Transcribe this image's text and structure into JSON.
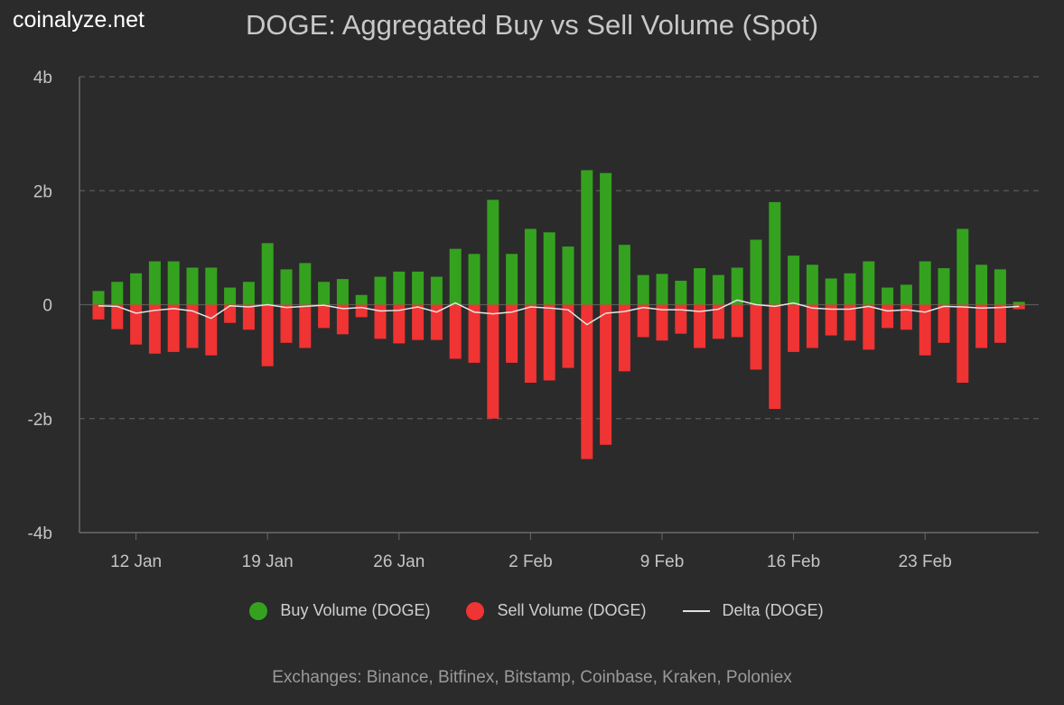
{
  "logo": "coinalyze.net",
  "footer": "Exchanges: Binance, Bitfinex, Bitstamp, Coinbase, Kraken, Poloniex",
  "colors": {
    "buy": "#34a21f",
    "sell": "#f03333",
    "delta": "#e6e6e6"
  },
  "chart_data": {
    "type": "bar",
    "title": "DOGE: Aggregated Buy vs Sell Volume (Spot)",
    "xlabel": "",
    "ylabel": "",
    "ylim": [
      -4,
      4
    ],
    "yunit": "b",
    "yticks": [
      {
        "v": 4,
        "label": "4b"
      },
      {
        "v": 2,
        "label": "2b"
      },
      {
        "v": 0,
        "label": "0"
      },
      {
        "v": -2,
        "label": "-2b"
      },
      {
        "v": -4,
        "label": "-4b"
      }
    ],
    "xticks": [
      {
        "i": 2,
        "label": "12 Jan"
      },
      {
        "i": 9,
        "label": "19 Jan"
      },
      {
        "i": 16,
        "label": "26 Jan"
      },
      {
        "i": 23,
        "label": "2 Feb"
      },
      {
        "i": 30,
        "label": "9 Feb"
      },
      {
        "i": 37,
        "label": "16 Feb"
      },
      {
        "i": 44,
        "label": "23 Feb"
      }
    ],
    "categories": [
      "10 Jan",
      "11 Jan",
      "12 Jan",
      "13 Jan",
      "14 Jan",
      "15 Jan",
      "16 Jan",
      "17 Jan",
      "18 Jan",
      "19 Jan",
      "20 Jan",
      "21 Jan",
      "22 Jan",
      "23 Jan",
      "24 Jan",
      "25 Jan",
      "26 Jan",
      "27 Jan",
      "28 Jan",
      "29 Jan",
      "30 Jan",
      "31 Jan",
      "1 Feb",
      "2 Feb",
      "3 Feb",
      "4 Feb",
      "5 Feb",
      "6 Feb",
      "7 Feb",
      "8 Feb",
      "9 Feb",
      "10 Feb",
      "11 Feb",
      "12 Feb",
      "13 Feb",
      "14 Feb",
      "15 Feb",
      "16 Feb",
      "17 Feb",
      "18 Feb",
      "19 Feb",
      "20 Feb",
      "21 Feb",
      "22 Feb",
      "23 Feb",
      "24 Feb",
      "25 Feb",
      "26 Feb",
      "27 Feb",
      "28 Feb"
    ],
    "series": [
      {
        "name": "Buy Volume (DOGE)",
        "type": "bar",
        "values": [
          0.24,
          0.4,
          0.55,
          0.76,
          0.76,
          0.65,
          0.65,
          0.3,
          0.4,
          1.08,
          0.62,
          0.73,
          0.4,
          0.45,
          0.17,
          0.49,
          0.58,
          0.58,
          0.49,
          0.98,
          0.89,
          1.84,
          0.89,
          1.33,
          1.27,
          1.02,
          2.36,
          2.31,
          1.05,
          0.52,
          0.54,
          0.42,
          0.64,
          0.52,
          0.65,
          1.14,
          1.8,
          0.86,
          0.7,
          0.46,
          0.55,
          0.76,
          0.3,
          0.35,
          0.76,
          0.64,
          1.33,
          0.7,
          0.62,
          0.05
        ]
      },
      {
        "name": "Sell Volume (DOGE)",
        "type": "bar",
        "values": [
          -0.26,
          -0.43,
          -0.7,
          -0.86,
          -0.83,
          -0.76,
          -0.89,
          -0.32,
          -0.44,
          -1.08,
          -0.67,
          -0.76,
          -0.41,
          -0.52,
          -0.22,
          -0.6,
          -0.68,
          -0.62,
          -0.62,
          -0.95,
          -1.02,
          -2.0,
          -1.02,
          -1.37,
          -1.33,
          -1.11,
          -2.71,
          -2.46,
          -1.17,
          -0.57,
          -0.63,
          -0.51,
          -0.76,
          -0.6,
          -0.57,
          -1.14,
          -1.83,
          -0.83,
          -0.76,
          -0.54,
          -0.63,
          -0.79,
          -0.41,
          -0.44,
          -0.89,
          -0.67,
          -1.37,
          -0.76,
          -0.67,
          -0.08
        ]
      },
      {
        "name": "Delta (DOGE)",
        "type": "line",
        "values": [
          -0.02,
          -0.03,
          -0.15,
          -0.1,
          -0.07,
          -0.11,
          -0.24,
          -0.02,
          -0.04,
          0.0,
          -0.05,
          -0.03,
          -0.01,
          -0.07,
          -0.05,
          -0.11,
          -0.1,
          -0.04,
          -0.13,
          0.03,
          -0.13,
          -0.16,
          -0.13,
          -0.04,
          -0.06,
          -0.09,
          -0.35,
          -0.15,
          -0.12,
          -0.05,
          -0.09,
          -0.09,
          -0.12,
          -0.08,
          0.08,
          0.0,
          -0.03,
          0.03,
          -0.06,
          -0.08,
          -0.08,
          -0.03,
          -0.11,
          -0.09,
          -0.13,
          -0.03,
          -0.04,
          -0.06,
          -0.05,
          -0.03
        ]
      }
    ],
    "legend_position": "bottom",
    "grid": true
  }
}
